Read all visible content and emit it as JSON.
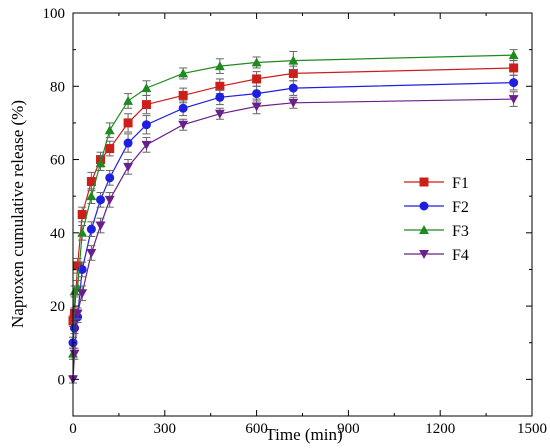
{
  "chart_data": {
    "type": "line",
    "xlabel": "Time (min)",
    "ylabel": "Naproxen cumulative release (%)",
    "xlim": [
      0,
      1500
    ],
    "ylim": [
      -10,
      100
    ],
    "xticks": [
      0,
      300,
      600,
      900,
      1200,
      1500
    ],
    "yticks": [
      0,
      20,
      40,
      60,
      80,
      100
    ],
    "grid": false,
    "legend_position": "right",
    "x": [
      0,
      5,
      15,
      30,
      60,
      90,
      120,
      180,
      240,
      360,
      480,
      600,
      720,
      1440
    ],
    "series": [
      {
        "name": "F1",
        "color": "#cc1f1a",
        "marker": "square",
        "values": [
          16,
          18,
          31,
          45,
          54,
          60,
          63,
          70,
          75,
          77.5,
          80,
          82,
          83.5,
          85
        ],
        "errors": [
          1.5,
          1.5,
          2,
          2,
          2.5,
          2,
          2,
          2.5,
          2.5,
          2,
          2,
          2,
          2,
          2
        ]
      },
      {
        "name": "F2",
        "color": "#1f1fe0",
        "marker": "circle",
        "values": [
          10,
          14,
          17,
          30,
          41,
          49,
          55,
          64.5,
          69.5,
          74,
          77,
          78,
          79.5,
          81
        ],
        "errors": [
          1.5,
          1.5,
          1.5,
          2,
          2,
          2,
          2,
          2.5,
          2.5,
          2,
          2,
          2,
          2,
          2
        ]
      },
      {
        "name": "F3",
        "color": "#1f8a1f",
        "marker": "triangle-up",
        "values": [
          7,
          24,
          25,
          40,
          50,
          59,
          68,
          76,
          79.5,
          83.5,
          85.5,
          86.5,
          87,
          88.5
        ],
        "errors": [
          1.5,
          1.5,
          2,
          2,
          2,
          2,
          2,
          2,
          2,
          1.5,
          2,
          1.5,
          2.5,
          1.5
        ]
      },
      {
        "name": "F4",
        "color": "#6a1f8a",
        "marker": "triangle-down",
        "values": [
          0,
          7,
          18,
          23.5,
          34.5,
          42,
          49,
          58,
          64,
          69.5,
          72.5,
          74.5,
          75.5,
          76.5
        ],
        "errors": [
          1,
          1.5,
          1.5,
          2,
          2,
          2,
          2,
          2,
          2,
          1.5,
          1.5,
          2,
          1.5,
          2
        ]
      }
    ]
  }
}
